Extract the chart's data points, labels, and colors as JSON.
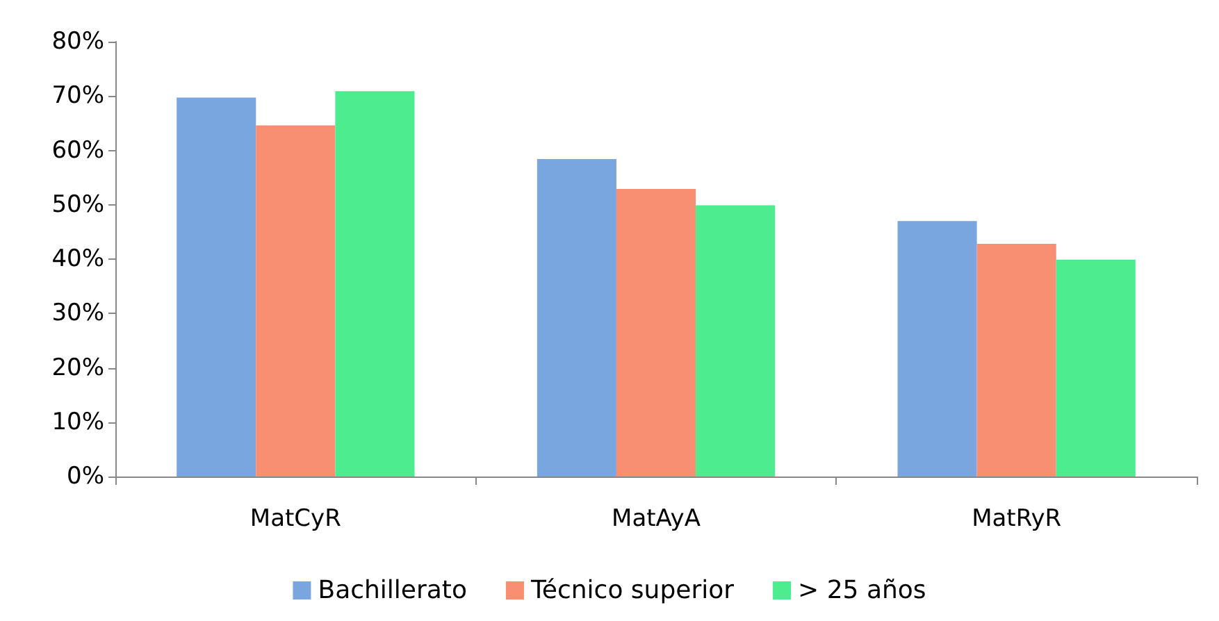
{
  "chart_data": {
    "type": "bar",
    "categories": [
      "MatCyR",
      "MatAyA",
      "MatRyR"
    ],
    "series": [
      {
        "name": "Bachillerato",
        "color": "#7aa6e0",
        "values": [
          69.7,
          58.4,
          47
        ]
      },
      {
        "name": "Técnico superior",
        "color": "#f98f72",
        "values": [
          64.6,
          52.9,
          42.8
        ]
      },
      {
        "name": "> 25 años",
        "color": "#4ded8f",
        "values": [
          70.9,
          49.9,
          39.9
        ]
      }
    ],
    "ylim": [
      0,
      80
    ],
    "yticks": [
      {
        "value": 0,
        "label": "0%"
      },
      {
        "value": 10,
        "label": "10%"
      },
      {
        "value": 20,
        "label": "20%"
      },
      {
        "value": 30,
        "label": "30%"
      },
      {
        "value": 40,
        "label": "40%"
      },
      {
        "value": 50,
        "label": "50%"
      },
      {
        "value": 60,
        "label": "60%"
      },
      {
        "value": 70,
        "label": "70%"
      },
      {
        "value": 80,
        "label": "80%"
      }
    ],
    "grid": false,
    "legend": "bottom"
  }
}
